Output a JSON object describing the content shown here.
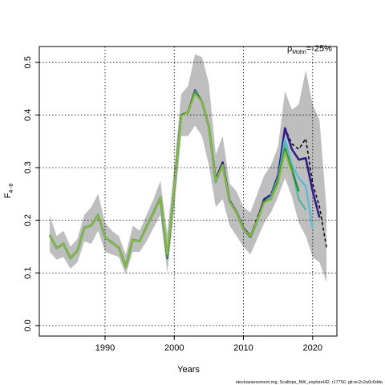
{
  "chart_data": {
    "type": "line",
    "xlabel": "Years",
    "ylabel": "F",
    "ylabel_sub": "4−8",
    "annotation_rho": "ρ",
    "annotation_sub": "Mohn",
    "annotation_value": "=-25%",
    "xlim": [
      1980.5,
      2023.5
    ],
    "ylim": [
      -0.02,
      0.53
    ],
    "grid": true,
    "x_ticks": [
      {
        "value": 1990,
        "label": "1990"
      },
      {
        "value": 2000,
        "label": "2000"
      },
      {
        "value": 2010,
        "label": "2010"
      },
      {
        "value": 2020,
        "label": "2020"
      }
    ],
    "y_ticks": [
      {
        "value": 0.0,
        "label": "0.0"
      },
      {
        "value": 0.1,
        "label": "0.1"
      },
      {
        "value": 0.2,
        "label": "0.2"
      },
      {
        "value": 0.3,
        "label": "0.3"
      },
      {
        "value": 0.4,
        "label": "0.4"
      },
      {
        "value": 0.5,
        "label": "0.5"
      }
    ],
    "confidence_band": {
      "color": "#bebebe",
      "x": [
        1982,
        1983,
        1984,
        1985,
        1986,
        1987,
        1988,
        1989,
        1990,
        1991,
        1992,
        1993,
        1994,
        1995,
        1996,
        1997,
        1998,
        1999,
        2000,
        2001,
        2002,
        2003,
        2004,
        2005,
        2006,
        2007,
        2008,
        2009,
        2010,
        2011,
        2012,
        2013,
        2014,
        2015,
        2016,
        2017,
        2018,
        2019,
        2020,
        2021,
        2022
      ],
      "lower": [
        0.14,
        0.125,
        0.13,
        0.108,
        0.12,
        0.16,
        0.155,
        0.18,
        0.14,
        0.135,
        0.13,
        0.097,
        0.14,
        0.14,
        0.16,
        0.185,
        0.21,
        0.1,
        0.22,
        0.36,
        0.36,
        0.38,
        0.36,
        0.305,
        0.225,
        0.24,
        0.19,
        0.17,
        0.15,
        0.135,
        0.165,
        0.195,
        0.215,
        0.245,
        0.28,
        0.245,
        0.195,
        0.17,
        0.13,
        0.12,
        0.082
      ],
      "upper": [
        0.21,
        0.17,
        0.18,
        0.15,
        0.165,
        0.21,
        0.225,
        0.25,
        0.195,
        0.18,
        0.17,
        0.135,
        0.19,
        0.18,
        0.21,
        0.24,
        0.275,
        0.175,
        0.3,
        0.44,
        0.455,
        0.515,
        0.51,
        0.46,
        0.325,
        0.36,
        0.27,
        0.255,
        0.225,
        0.215,
        0.25,
        0.285,
        0.305,
        0.34,
        0.445,
        0.41,
        0.42,
        0.485,
        0.42,
        0.39,
        0.22
      ]
    },
    "series": [
      {
        "color": "#000000",
        "dashed": true,
        "width": 1.5,
        "x": [
          1982,
          1983,
          1984,
          1985,
          1986,
          1987,
          1988,
          1989,
          1990,
          1991,
          1992,
          1993,
          1994,
          1995,
          1996,
          1997,
          1998,
          1999,
          2000,
          2001,
          2002,
          2003,
          2004,
          2005,
          2006,
          2007,
          2008,
          2009,
          2010,
          2011,
          2012,
          2013,
          2014,
          2015,
          2016,
          2017,
          2018,
          2019,
          2020,
          2021,
          2022
        ],
        "y": [
          0.172,
          0.147,
          0.155,
          0.128,
          0.142,
          0.186,
          0.19,
          0.21,
          0.168,
          0.158,
          0.148,
          0.112,
          0.163,
          0.16,
          0.188,
          0.215,
          0.243,
          0.13,
          0.26,
          0.4,
          0.405,
          0.447,
          0.425,
          0.378,
          0.28,
          0.31,
          0.235,
          0.215,
          0.185,
          0.17,
          0.205,
          0.24,
          0.25,
          0.288,
          0.375,
          0.345,
          0.335,
          0.355,
          0.27,
          0.225,
          0.148
        ]
      },
      {
        "color": "#2b1b8a",
        "dashed": false,
        "width": 2.5,
        "x": [
          1982,
          1983,
          1984,
          1985,
          1986,
          1987,
          1988,
          1989,
          1990,
          1991,
          1992,
          1993,
          1994,
          1995,
          1996,
          1997,
          1998,
          1999,
          2000,
          2001,
          2002,
          2003,
          2004,
          2005,
          2006,
          2007,
          2008,
          2009,
          2010,
          2011,
          2012,
          2013,
          2014,
          2015,
          2016,
          2017,
          2018,
          2019,
          2020,
          2021
        ],
        "y": [
          0.172,
          0.147,
          0.155,
          0.128,
          0.142,
          0.186,
          0.19,
          0.21,
          0.168,
          0.158,
          0.148,
          0.112,
          0.163,
          0.16,
          0.188,
          0.215,
          0.243,
          0.128,
          0.26,
          0.4,
          0.405,
          0.447,
          0.425,
          0.378,
          0.277,
          0.31,
          0.237,
          0.216,
          0.185,
          0.17,
          0.2,
          0.24,
          0.248,
          0.285,
          0.375,
          0.335,
          0.315,
          0.318,
          0.255,
          0.205
        ]
      },
      {
        "color": "#63b8d8",
        "dashed": false,
        "width": 2.5,
        "x": [
          2014,
          2015,
          2016,
          2017,
          2018,
          2019,
          2020
        ],
        "y": [
          0.24,
          0.275,
          0.355,
          0.305,
          0.28,
          0.265,
          0.185
        ]
      },
      {
        "color": "#52b8a0",
        "dashed": false,
        "width": 2.5,
        "x": [
          1982,
          1983,
          1984,
          1985,
          1986,
          1987,
          1988,
          1989,
          1990,
          1991,
          1992,
          1993,
          1994,
          1995,
          1996,
          1997,
          1998,
          1999,
          2000,
          2001,
          2002,
          2003,
          2004,
          2005,
          2006,
          2007,
          2008,
          2009,
          2010,
          2011,
          2012,
          2013,
          2014,
          2015,
          2016,
          2017,
          2018,
          2019
        ],
        "y": [
          0.172,
          0.147,
          0.155,
          0.128,
          0.142,
          0.186,
          0.19,
          0.21,
          0.168,
          0.158,
          0.148,
          0.112,
          0.163,
          0.16,
          0.188,
          0.215,
          0.243,
          0.13,
          0.26,
          0.4,
          0.405,
          0.445,
          0.425,
          0.378,
          0.272,
          0.305,
          0.235,
          0.215,
          0.183,
          0.168,
          0.198,
          0.235,
          0.245,
          0.28,
          0.345,
          0.3,
          0.24,
          0.22
        ]
      },
      {
        "color": "#2e8b3a",
        "dashed": false,
        "width": 2.5,
        "x": [
          1982,
          1983,
          1984,
          1985,
          1986,
          1987,
          1988,
          1989,
          1990,
          1991,
          1992,
          1993,
          1994,
          1995,
          1996,
          1997,
          1998,
          1999,
          2000,
          2001,
          2002,
          2003,
          2004,
          2005,
          2006,
          2007,
          2008,
          2009,
          2010,
          2011,
          2012,
          2013,
          2014,
          2015,
          2016,
          2017,
          2018
        ],
        "y": [
          0.172,
          0.147,
          0.155,
          0.128,
          0.142,
          0.186,
          0.19,
          0.21,
          0.168,
          0.158,
          0.148,
          0.112,
          0.163,
          0.16,
          0.188,
          0.215,
          0.243,
          0.132,
          0.26,
          0.4,
          0.405,
          0.443,
          0.425,
          0.378,
          0.275,
          0.305,
          0.235,
          0.215,
          0.183,
          0.168,
          0.2,
          0.235,
          0.24,
          0.275,
          0.335,
          0.295,
          0.255
        ]
      },
      {
        "color": "#8cbc3c",
        "dashed": false,
        "width": 2,
        "x": [
          1982,
          1983,
          1984,
          1985,
          1986,
          1987,
          1988,
          1989,
          1990,
          1991,
          1992,
          1993,
          1994,
          1995,
          1996,
          1997,
          1998,
          1999,
          2000,
          2001,
          2002,
          2003,
          2004,
          2005,
          2006,
          2007,
          2008,
          2009,
          2010,
          2011,
          2012,
          2013,
          2014,
          2015,
          2016,
          2017
        ],
        "y": [
          0.172,
          0.147,
          0.155,
          0.128,
          0.142,
          0.186,
          0.19,
          0.21,
          0.168,
          0.158,
          0.148,
          0.112,
          0.163,
          0.16,
          0.188,
          0.215,
          0.243,
          0.135,
          0.26,
          0.398,
          0.405,
          0.44,
          0.425,
          0.378,
          0.275,
          0.305,
          0.235,
          0.215,
          0.183,
          0.17,
          0.2,
          0.233,
          0.24,
          0.27,
          0.33,
          0.29
        ]
      }
    ]
  },
  "footer": "stockassessment.org, Scallops_NW_exploreHD, r17750, git:ec2c2a0c6dde"
}
